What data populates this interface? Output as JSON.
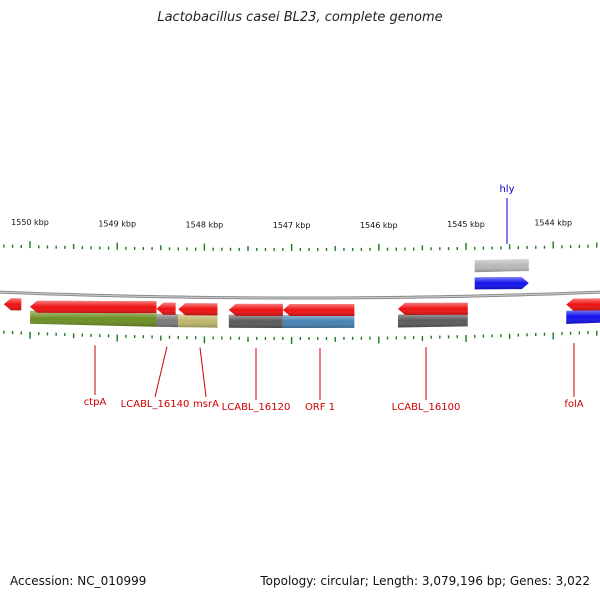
{
  "title": "Lactobacillus casei BL23, complete genome",
  "footer": {
    "accession": "Accession: NC_010999",
    "summary": "Topology: circular; Length: 3,079,196 bp; Genes: 3,022"
  },
  "colors": {
    "cds": "#ee1111",
    "cds_blue": "#1111ee",
    "backbone": "#8a8a8a",
    "tick": "#1a7a1a",
    "label_red": "#cc0000",
    "label_blue": "#0000cc"
  },
  "axis": {
    "unit": "kbp",
    "ticks": [
      {
        "kbp": 1550,
        "label": "1550 kbp"
      },
      {
        "kbp": 1549,
        "label": "1549 kbp"
      },
      {
        "kbp": 1548,
        "label": "1548 kbp"
      },
      {
        "kbp": 1547,
        "label": "1547 kbp"
      },
      {
        "kbp": 1546,
        "label": "1546 kbp"
      },
      {
        "kbp": 1545,
        "label": "1545 kbp"
      },
      {
        "kbp": 1544,
        "label": "1544 kbp"
      }
    ]
  },
  "genes": [
    {
      "id": "g0",
      "strand": "reverse",
      "start": 1550.3,
      "end": 1550.1,
      "color": "#ee1111"
    },
    {
      "id": "ctpA",
      "strand": "reverse",
      "start": 1550.0,
      "end": 1548.55,
      "color": "#ee1111",
      "label": "ctpA"
    },
    {
      "id": "lcabl16140",
      "strand": "reverse",
      "start": 1548.55,
      "end": 1548.33,
      "color": "#ee1111",
      "label": "LCABL_16140"
    },
    {
      "id": "msrA",
      "strand": "reverse",
      "start": 1548.3,
      "end": 1547.85,
      "color": "#ee1111",
      "label": "msrA"
    },
    {
      "id": "lcabl16120",
      "strand": "reverse",
      "start": 1547.72,
      "end": 1547.1,
      "color": "#ee1111",
      "label": "LCABL_16120"
    },
    {
      "id": "orf1",
      "strand": "reverse",
      "start": 1547.1,
      "end": 1546.28,
      "color": "#ee1111",
      "label": "ORF 1"
    },
    {
      "id": "lcabl16100",
      "strand": "reverse",
      "start": 1545.78,
      "end": 1544.98,
      "color": "#ee1111",
      "label": "LCABL_16100"
    },
    {
      "id": "hly",
      "strand": "forward",
      "start": 1544.9,
      "end": 1544.28,
      "color": "#1111ee",
      "label": "hly"
    },
    {
      "id": "folA",
      "strand": "reverse",
      "start": 1543.85,
      "end": 1543.45,
      "color": "#ee1111",
      "label": "folA"
    }
  ],
  "features": [
    {
      "id": "f-olive",
      "start": 1550.0,
      "end": 1548.55,
      "color": "#6b8e23",
      "row": "reverse"
    },
    {
      "id": "f-grey-small",
      "start": 1548.55,
      "end": 1548.3,
      "color": "#7a7a7a",
      "row": "reverse"
    },
    {
      "id": "f-khaki",
      "start": 1548.3,
      "end": 1547.85,
      "color": "#bdb76b",
      "row": "reverse"
    },
    {
      "id": "f-dark-1",
      "start": 1547.72,
      "end": 1547.1,
      "color": "#5a5a5a",
      "row": "reverse"
    },
    {
      "id": "f-steelblue",
      "start": 1547.1,
      "end": 1546.28,
      "color": "#4682b4",
      "row": "reverse"
    },
    {
      "id": "f-dark-2",
      "start": 1545.78,
      "end": 1544.98,
      "color": "#5a5a5a",
      "row": "reverse"
    },
    {
      "id": "f-light",
      "start": 1544.9,
      "end": 1544.28,
      "color": "#b8b8b8",
      "row": "forward"
    },
    {
      "id": "f-blue",
      "start": 1543.85,
      "end": 1543.45,
      "color": "#1111ee",
      "row": "reverse"
    }
  ]
}
